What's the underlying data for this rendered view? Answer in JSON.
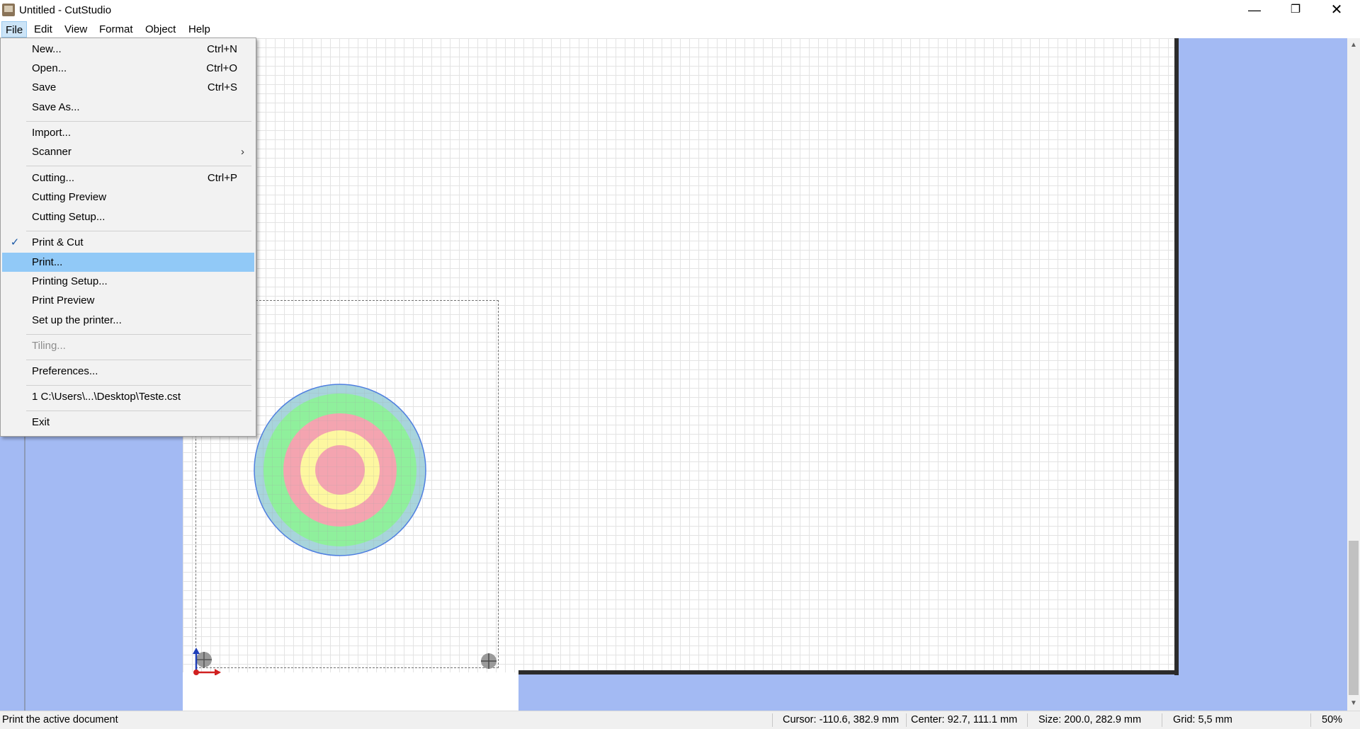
{
  "window": {
    "title": "Untitled - CutStudio",
    "controls": {
      "minimize": "—",
      "maximize": "❐",
      "close": "✕"
    }
  },
  "menubar": {
    "items": [
      {
        "label": "File",
        "active": true
      },
      {
        "label": "Edit"
      },
      {
        "label": "View"
      },
      {
        "label": "Format"
      },
      {
        "label": "Object"
      },
      {
        "label": "Help"
      }
    ]
  },
  "file_menu": {
    "items": [
      {
        "label": "New...",
        "shortcut": "Ctrl+N"
      },
      {
        "label": "Open...",
        "shortcut": "Ctrl+O"
      },
      {
        "label": "Save",
        "shortcut": "Ctrl+S"
      },
      {
        "label": "Save As..."
      },
      {
        "label": "Import..."
      },
      {
        "label": "Scanner",
        "submenu": "›"
      },
      {
        "label": "Cutting...",
        "shortcut": "Ctrl+P"
      },
      {
        "label": "Cutting Preview"
      },
      {
        "label": "Cutting Setup..."
      },
      {
        "label": "Print & Cut",
        "checked": "✓"
      },
      {
        "label": "Print..."
      },
      {
        "label": "Printing Setup..."
      },
      {
        "label": "Print Preview"
      },
      {
        "label": "Set up the printer..."
      },
      {
        "label": "Tiling...",
        "disabled": true
      },
      {
        "label": "Preferences..."
      },
      {
        "label": "1 C:\\Users\\...\\Desktop\\Teste.cst"
      },
      {
        "label": "Exit"
      }
    ]
  },
  "statusbar": {
    "message": "Print the active document",
    "cursor": "Cursor: -110.6, 382.9 mm",
    "center": "Center: 92.7, 111.1 mm",
    "size": "Size: 200.0, 282.9 mm",
    "grid": "Grid: 5,5 mm",
    "zoom": "50%"
  },
  "scrollbar": {
    "up": "▲",
    "down": "▼"
  },
  "colors": {
    "workspace_bg": "#a3baf3",
    "menu_highlight": "#91c9f7",
    "target_outer": "#a8d4dc",
    "target_green": "#8ff09c",
    "target_pink": "#f4a4b0",
    "target_yellow": "#fdf7a0",
    "target_stroke": "#4f7fe0"
  }
}
